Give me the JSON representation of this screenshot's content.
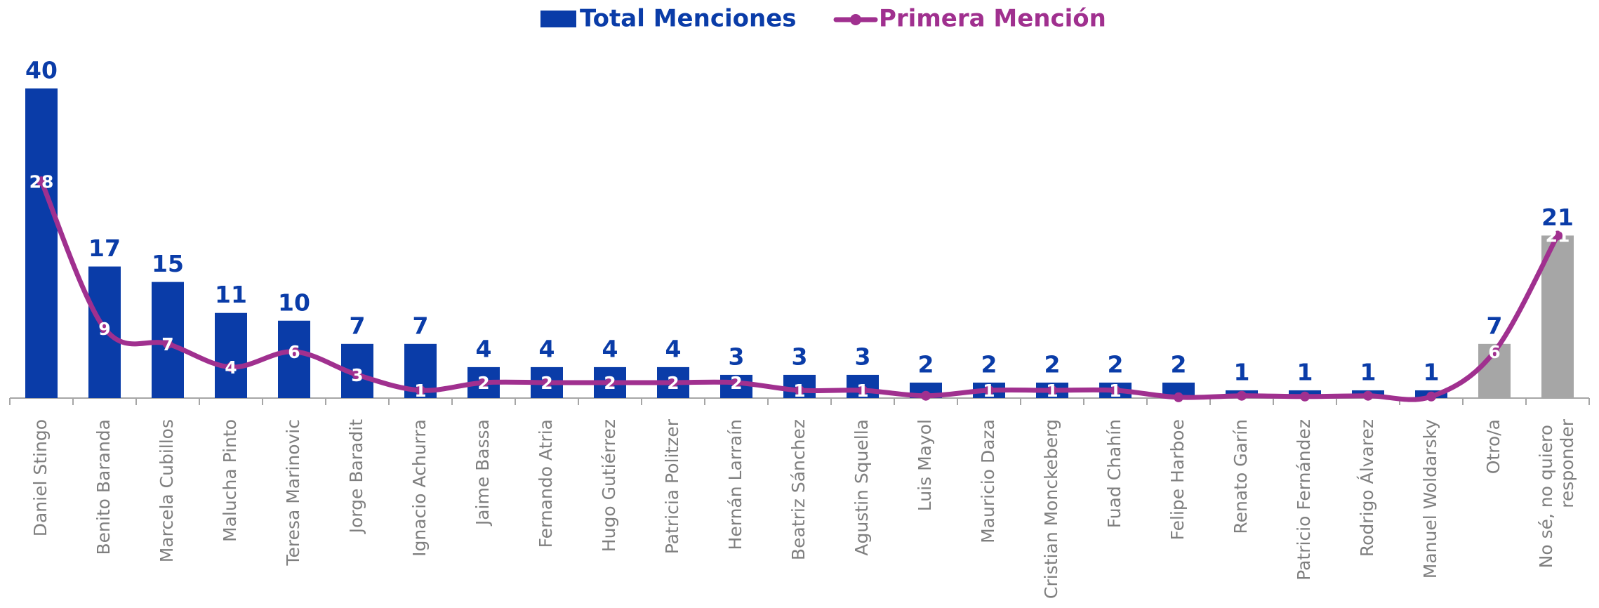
{
  "chart_data": {
    "type": "bar_line",
    "categories": [
      "Daniel Stingo",
      "Benito Baranda",
      "Marcela Cubillos",
      "Malucha Pinto",
      "Teresa Marinovic",
      "Jorge Baradit",
      "Ignacio Achurra",
      "Jaime Bassa",
      "Fernando Atria",
      "Hugo Gutiérrez",
      "Patricia Politzer",
      "Hernán Larraín",
      "Beatriz Sánchez",
      "Agustin Squella",
      "Luis Mayol",
      "Mauricio Daza",
      "Cristian Monckeberg",
      "Fuad Chahín",
      "Felipe Harboe",
      "Renato Garín",
      "Patricio Fernández",
      "Rodrigo Álvarez",
      "Manuel Woldarsky",
      "Otro/a",
      "No sé, no quiero responder"
    ],
    "series": [
      {
        "name": "Total Menciones",
        "type": "bar",
        "color": "#0a3ca8",
        "colors": [
          "#0a3ca8",
          "#0a3ca8",
          "#0a3ca8",
          "#0a3ca8",
          "#0a3ca8",
          "#0a3ca8",
          "#0a3ca8",
          "#0a3ca8",
          "#0a3ca8",
          "#0a3ca8",
          "#0a3ca8",
          "#0a3ca8",
          "#0a3ca8",
          "#0a3ca8",
          "#0a3ca8",
          "#0a3ca8",
          "#0a3ca8",
          "#0a3ca8",
          "#0a3ca8",
          "#0a3ca8",
          "#0a3ca8",
          "#0a3ca8",
          "#0a3ca8",
          "#a6a6a6",
          "#a6a6a6"
        ],
        "values": [
          40,
          17,
          15,
          11,
          10,
          7,
          7,
          4,
          4,
          4,
          4,
          3,
          3,
          3,
          2,
          2,
          2,
          2,
          2,
          1,
          1,
          1,
          1,
          7,
          21
        ]
      },
      {
        "name": "Primera Mención",
        "type": "line",
        "color": "#a0308f",
        "values": [
          28,
          9,
          7,
          4,
          6,
          3,
          1,
          2,
          2,
          2,
          2,
          2,
          1,
          1,
          0.3,
          1,
          1,
          1,
          0.1,
          0.3,
          0.2,
          0.3,
          0.2,
          6,
          21
        ],
        "value_labels": [
          "28",
          "9",
          "7",
          "4",
          "6",
          "3",
          "1",
          "2",
          "2",
          "2",
          "2",
          "2",
          "1",
          "1",
          null,
          "1",
          "1",
          "1",
          null,
          null,
          null,
          null,
          null,
          "6",
          "21"
        ]
      }
    ],
    "ylim": [
      0,
      40
    ],
    "legend": "top"
  }
}
